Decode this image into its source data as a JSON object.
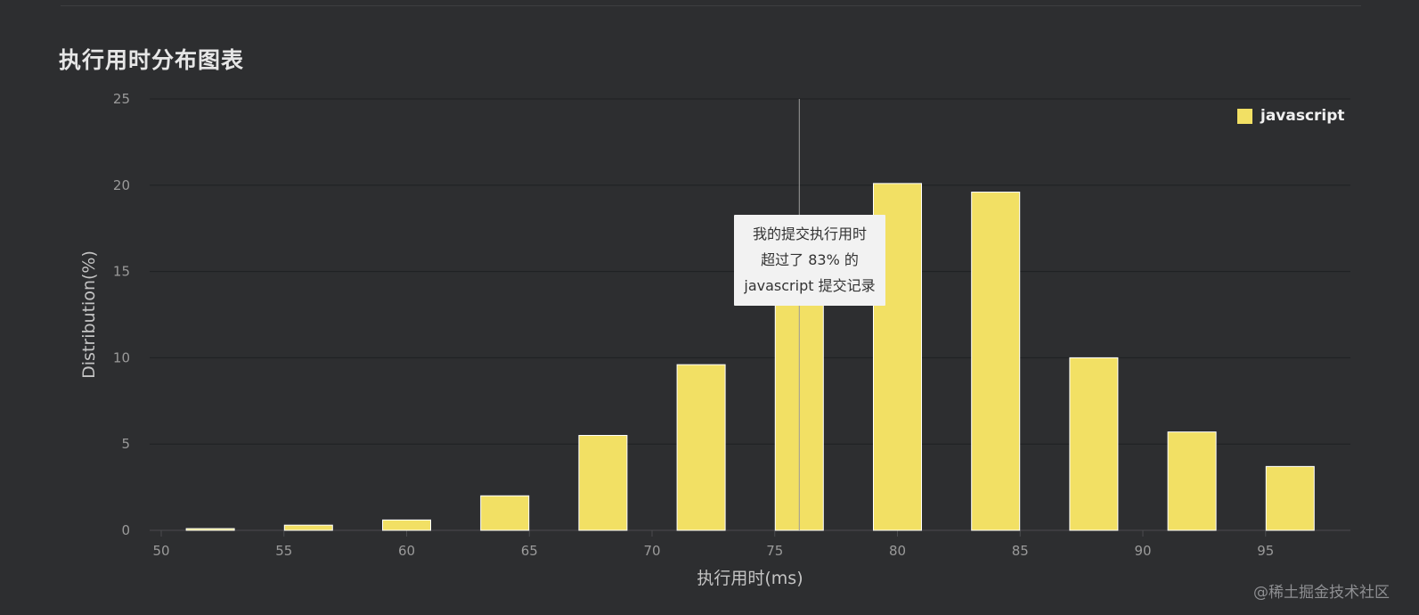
{
  "page": {
    "title": "执行用时分布图表",
    "watermark": "@稀土掘金技术社区"
  },
  "tooltip": {
    "lines": [
      "我的提交执行用时",
      "超过了 83% 的",
      "javascript 提交记录"
    ],
    "marker_x": 76
  },
  "colors": {
    "background": "#2d2e30",
    "bar": "#f2e064",
    "bar_stroke": "#ffffff",
    "grid": "#1f2022",
    "tick_label": "#9a9a9a",
    "axis_title": "#c4c4c4"
  },
  "chart_data": {
    "type": "bar",
    "title": "执行用时分布图表",
    "xlabel": "执行用时(ms)",
    "ylabel": "Distribution(%)",
    "xlim": [
      50,
      98
    ],
    "ylim": [
      0,
      25
    ],
    "xticks": [
      50,
      55,
      60,
      65,
      70,
      75,
      80,
      85,
      90,
      95
    ],
    "yticks": [
      0,
      5,
      10,
      15,
      20,
      25
    ],
    "grid": true,
    "legend_position": "top-right",
    "series": [
      {
        "name": "javascript",
        "color": "#f2e064",
        "x": [
          52,
          56,
          60,
          64,
          68,
          72,
          76,
          80,
          84,
          88,
          92,
          96
        ],
        "values": [
          0.1,
          0.3,
          0.6,
          2.0,
          5.5,
          9.6,
          16.5,
          20.1,
          19.6,
          10.0,
          5.7,
          3.7
        ]
      }
    ]
  }
}
